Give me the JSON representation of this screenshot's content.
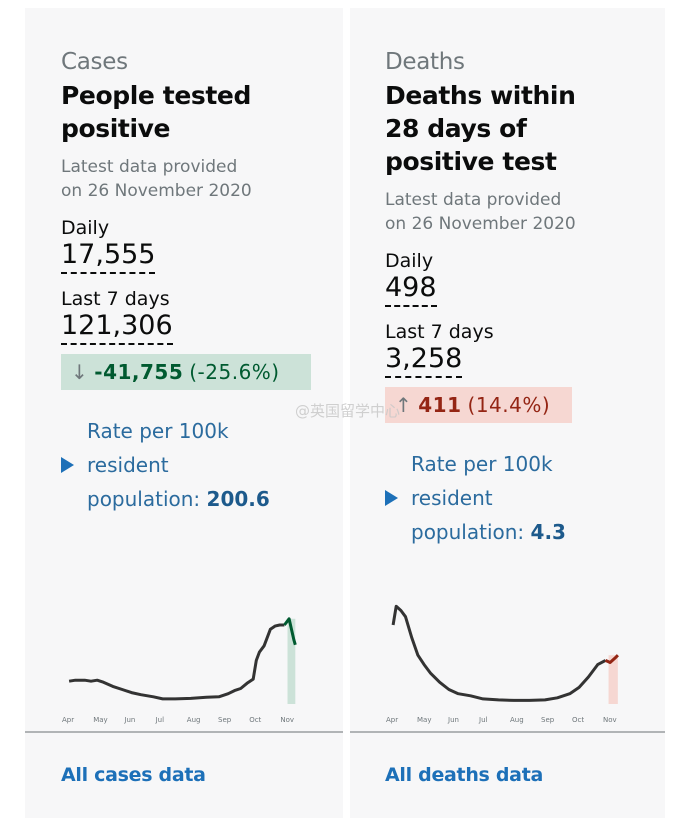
{
  "cards": {
    "cases": {
      "caption": "Cases",
      "title_line1": "People tested",
      "title_line2": "positive",
      "latest_line1": "Latest data provided",
      "latest_line2": "on 26 November 2020",
      "daily_label": "Daily",
      "daily_value": "17,555",
      "week_label": "Last 7 days",
      "week_value": "121,306",
      "change_direction": "down",
      "change_icon": "arrow-down-icon",
      "change_arrow": "↓",
      "change_value": "-41,755",
      "change_percent": "(-25.6%)",
      "rate_line1": "Rate per 100k",
      "rate_line2": "resident",
      "rate_line3": "population:",
      "rate_value": "200.6",
      "footer_link": "All cases data"
    },
    "deaths": {
      "caption": "Deaths",
      "title_line1": "Deaths within",
      "title_line2": "28 days of",
      "title_line3": "positive test",
      "latest_line1": "Latest data provided",
      "latest_line2": "on 26 November 2020",
      "daily_label": "Daily",
      "daily_value": "498",
      "week_label": "Last 7 days",
      "week_value": "3,258",
      "change_direction": "up",
      "change_icon": "arrow-up-icon",
      "change_arrow": "↑",
      "change_value": "411",
      "change_percent": "(14.4%)",
      "rate_line1": "Rate per 100k",
      "rate_line2": "resident",
      "rate_line3": "population:",
      "rate_value": "4.3",
      "footer_link": "All deaths data"
    }
  },
  "watermark": "@英国留学中心",
  "colors": {
    "down_bg": "#cce2d8",
    "down_text": "#005a30",
    "up_bg": "#f6d7d2",
    "up_text": "#942514",
    "link": "#1d70b8",
    "line": "#333333"
  },
  "chart_data": [
    {
      "type": "line",
      "title": "",
      "xlabel": "",
      "ylabel": "",
      "x_ticks": [
        "Apr",
        "May",
        "Jun",
        "Jul",
        "Aug",
        "Sep",
        "Oct",
        "Nov"
      ],
      "x_range_months": [
        0,
        7.85
      ],
      "ylim": [
        0,
        100
      ],
      "series": [
        {
          "name": "cases",
          "x": [
            0.1,
            0.3,
            0.6,
            0.8,
            1.0,
            1.2,
            1.5,
            1.8,
            2.1,
            2.4,
            2.8,
            3.1,
            3.5,
            4.0,
            4.5,
            4.9,
            5.2,
            5.4,
            5.6,
            5.8,
            6.0,
            6.1,
            6.2,
            6.35,
            6.55,
            6.7,
            6.85,
            7.0,
            7.15,
            7.3,
            7.35
          ],
          "y": [
            20,
            21,
            21,
            20,
            21,
            19,
            15,
            12,
            9,
            7,
            5,
            3,
            3,
            3.5,
            4.5,
            5,
            8,
            11,
            13,
            18,
            22,
            40,
            48,
            54,
            70,
            73,
            74,
            74,
            80,
            60,
            55
          ]
        },
        {
          "name": "deaths",
          "x": [
            0.1,
            0.2,
            0.35,
            0.5,
            0.7,
            0.9,
            1.1,
            1.3,
            1.6,
            1.9,
            2.2,
            2.6,
            3.0,
            3.5,
            4.0,
            4.5,
            5.0,
            5.4,
            5.8,
            6.1,
            6.4,
            6.7,
            6.95,
            7.1,
            7.25,
            7.35
          ],
          "y": [
            74,
            92,
            88,
            82,
            62,
            45,
            36,
            28,
            19,
            12,
            8,
            6,
            3,
            2,
            1.5,
            1.5,
            2,
            4,
            8,
            14,
            24,
            36,
            40,
            38,
            42,
            45
          ]
        }
      ],
      "highlight": {
        "cases": {
          "x_start": 7.1,
          "x_end": 7.35,
          "color": "#cce2d8",
          "line_color": "#005a30"
        },
        "deaths": {
          "x_start": 7.05,
          "x_end": 7.35,
          "color": "#f6d7d2",
          "line_color": "#942514"
        }
      }
    }
  ]
}
